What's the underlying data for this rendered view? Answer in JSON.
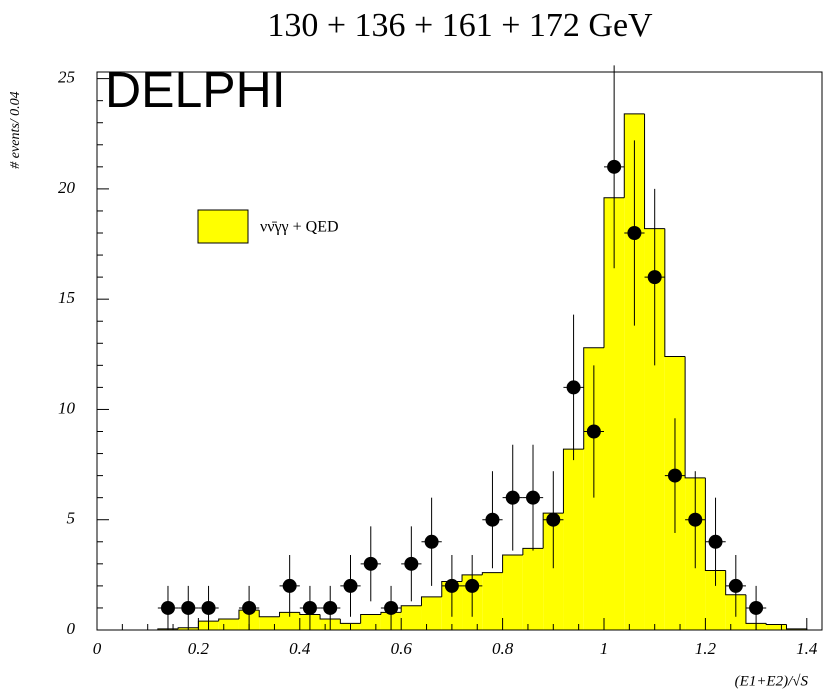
{
  "chart_data": {
    "type": "histogram",
    "title": "130 + 136 + 161 + 172 GeV",
    "annotation": "DELPHI",
    "x_label": "(E1+E2)/√S",
    "y_label": "# events/ 0.04",
    "bins": [
      0,
      0.04,
      0.08,
      0.12,
      0.16,
      0.2,
      0.24,
      0.28,
      0.32,
      0.36,
      0.4,
      0.44,
      0.48,
      0.52,
      0.56,
      0.6,
      0.64,
      0.68,
      0.72,
      0.76,
      0.8,
      0.84,
      0.88,
      0.92,
      0.96,
      1.0,
      1.04,
      1.08,
      1.12,
      1.16,
      1.2,
      1.24,
      1.28,
      1.32,
      1.36,
      1.4
    ],
    "series": [
      {
        "name": "νν̄γγ + QED",
        "color": "#ffff00",
        "values": [
          0,
          0,
          0,
          0.05,
          0.1,
          0.4,
          0.5,
          0.9,
          0.6,
          0.8,
          0.7,
          0.5,
          0.3,
          0.7,
          0.8,
          1.1,
          1.5,
          2.2,
          2.5,
          2.6,
          3.4,
          3.7,
          5.3,
          8.2,
          12.8,
          19.6,
          23.4,
          18.2,
          12.4,
          6.9,
          2.7,
          1.6,
          0.3,
          0.25,
          0.05
        ]
      }
    ],
    "points": {
      "color": "#000000",
      "x": [
        0.14,
        0.18,
        0.22,
        0.3,
        0.38,
        0.42,
        0.46,
        0.5,
        0.54,
        0.58,
        0.62,
        0.66,
        0.7,
        0.74,
        0.78,
        0.82,
        0.86,
        0.9,
        0.94,
        0.98,
        1.02,
        1.06,
        1.1,
        1.14,
        1.18,
        1.22,
        1.26,
        1.3
      ],
      "values": [
        1,
        1,
        1,
        1,
        2,
        1,
        1,
        2,
        3,
        1,
        3,
        4,
        2,
        2,
        5,
        6,
        6,
        5,
        11,
        9,
        21,
        18,
        16,
        7,
        5,
        4,
        2,
        1
      ],
      "errors": [
        1,
        1,
        1,
        1,
        1.4,
        1,
        1,
        1.4,
        1.7,
        1,
        1.7,
        2,
        1.4,
        1.4,
        2.2,
        2.4,
        2.4,
        2.2,
        3.3,
        3,
        4.6,
        4.2,
        4,
        2.6,
        2.2,
        2,
        1.4,
        1
      ]
    },
    "xlim": [
      0,
      1.43
    ],
    "ylim": [
      0,
      25.3
    ],
    "xticks": [
      0,
      0.2,
      0.4,
      0.6,
      0.8,
      1,
      1.2,
      1.4
    ],
    "yticks": [
      0,
      5,
      10,
      15,
      20,
      25
    ]
  }
}
